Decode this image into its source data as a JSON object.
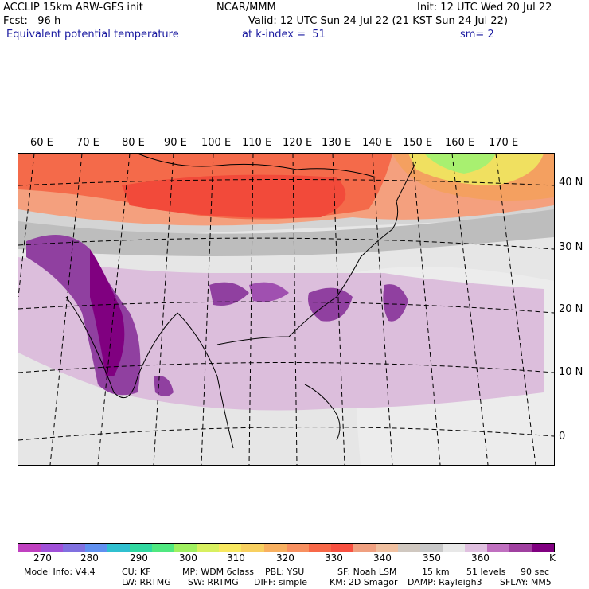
{
  "header": {
    "left_line1": "ACCLIP 15km ARW-GFS init",
    "left_line2": "Fcst:   96 h",
    "field_name": "Equivalent potential temperature",
    "center_line1": "NCAR/MMM",
    "init": "Init: 12 UTC Wed 20 Jul 22",
    "valid": "Valid: 12 UTC Sun 24 Jul 22 (21 KST Sun 24 Jul 22)",
    "level": "at k-index =  51",
    "smooth": "sm= 2"
  },
  "map": {
    "projection": "lambert-like curved graticule",
    "lon_labels": [
      "60 E",
      "70 E",
      "80 E",
      "90 E",
      "100 E",
      "110 E",
      "120 E",
      "130 E",
      "140 E",
      "150 E",
      "160 E",
      "170 E"
    ],
    "lat_labels": [
      "40 N",
      "30 N",
      "20 N",
      "10 N",
      "0"
    ]
  },
  "colorbar": {
    "colors": [
      "#c040c0",
      "#a050d8",
      "#8070e0",
      "#6090f0",
      "#30c0d0",
      "#30d8a0",
      "#50e880",
      "#a0f060",
      "#d8f060",
      "#f8e860",
      "#f8d060",
      "#f8b060",
      "#f89060",
      "#f86848",
      "#f85040",
      "#f0a080",
      "#f0c0a0",
      "#d0c8c0",
      "#c8c8c8",
      "#e8e8e8",
      "#e0c0e0",
      "#c070c0",
      "#a040a0",
      "#800080"
    ],
    "tick_labels": [
      "270",
      "280",
      "290",
      "300",
      "310",
      "320",
      "330",
      "340",
      "350",
      "360"
    ],
    "unit": "K"
  },
  "model_info": {
    "row1": [
      "Model Info: V4.4",
      "CU: KF",
      "MP: WDM 6class",
      "PBL: YSU",
      "SF: Noah LSM",
      "15 km",
      "51 levels",
      "90 sec"
    ],
    "row2": [
      "LW: RRTMG",
      "SW: RRTMG",
      "DIFF: simple",
      "KM: 2D Smagor",
      "DAMP: Rayleigh3",
      "SFLAY: MM5"
    ]
  }
}
